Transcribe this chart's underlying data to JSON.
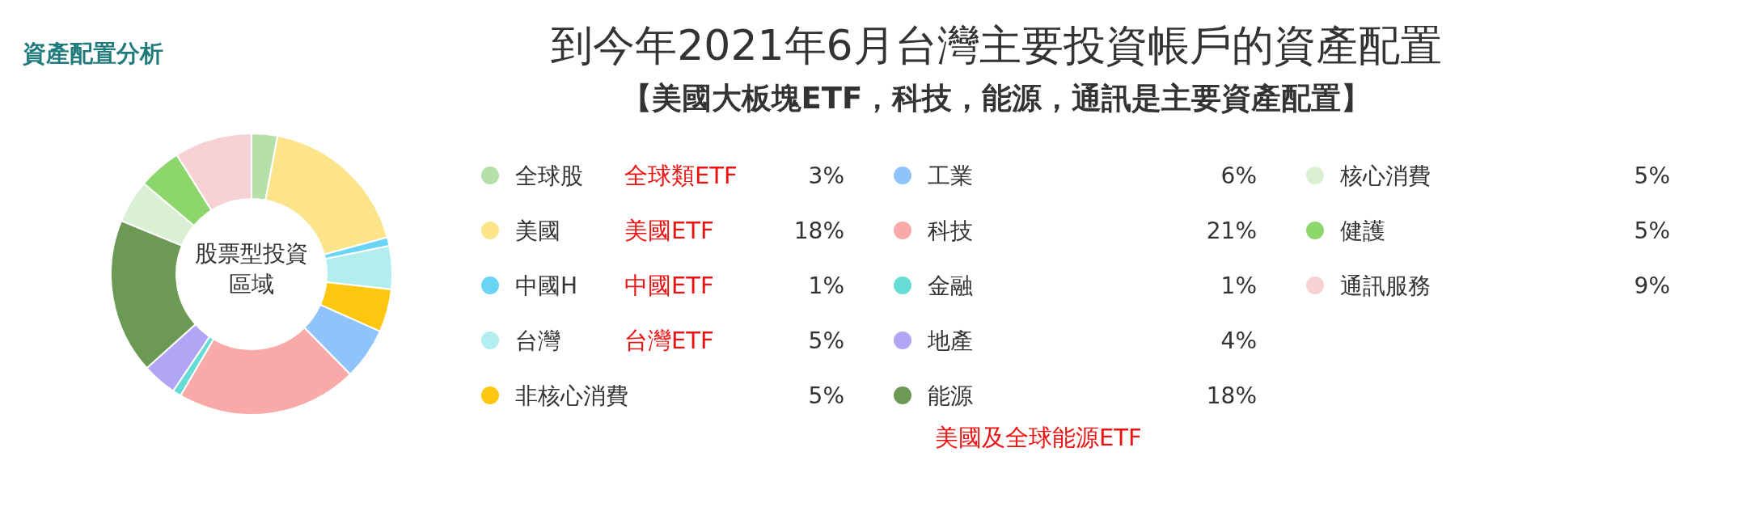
{
  "chart_data": {
    "type": "donut",
    "title": "到今年2021年6月台灣主要投資帳戶的資產配置",
    "subtitle": "【美國大板塊ETF，科技，能源，通訊是主要資產配置】",
    "categories": [
      "全球股",
      "美國",
      "中國H",
      "台灣",
      "非核心消費",
      "工業",
      "科技",
      "金融",
      "地產",
      "能源",
      "核心消費",
      "健護",
      "通訊服務"
    ],
    "values": [
      3,
      18,
      1,
      5,
      5,
      6,
      21,
      1,
      4,
      18,
      5,
      5,
      9
    ],
    "value_labels": [
      "3%",
      "18%",
      "1%",
      "5%",
      "5%",
      "6%",
      "21%",
      "1%",
      "4%",
      "18%",
      "5%",
      "5%",
      "9%"
    ],
    "colors": [
      "#b5e0a8",
      "#fde48a",
      "#6ad4f5",
      "#b3eeee",
      "#fdc60f",
      "#8ec3fb",
      "#f9a9a8",
      "#66dcd6",
      "#b1a6f5",
      "#6c9a55",
      "#d9f0d3",
      "#8dd66b",
      "#f7d1d3"
    ],
    "legend": "right",
    "annotations": [
      "資產配置分析",
      "股票型投資區域",
      {
        "text": "全球類ETF",
        "x": "全球股"
      },
      {
        "text": "美國ETF",
        "x": "美國"
      },
      {
        "text": "中國ETF",
        "x": "中國H"
      },
      {
        "text": "台灣ETF",
        "x": "台灣"
      },
      {
        "text": "美國及全球能源ETF",
        "x": "能源"
      }
    ]
  }
}
